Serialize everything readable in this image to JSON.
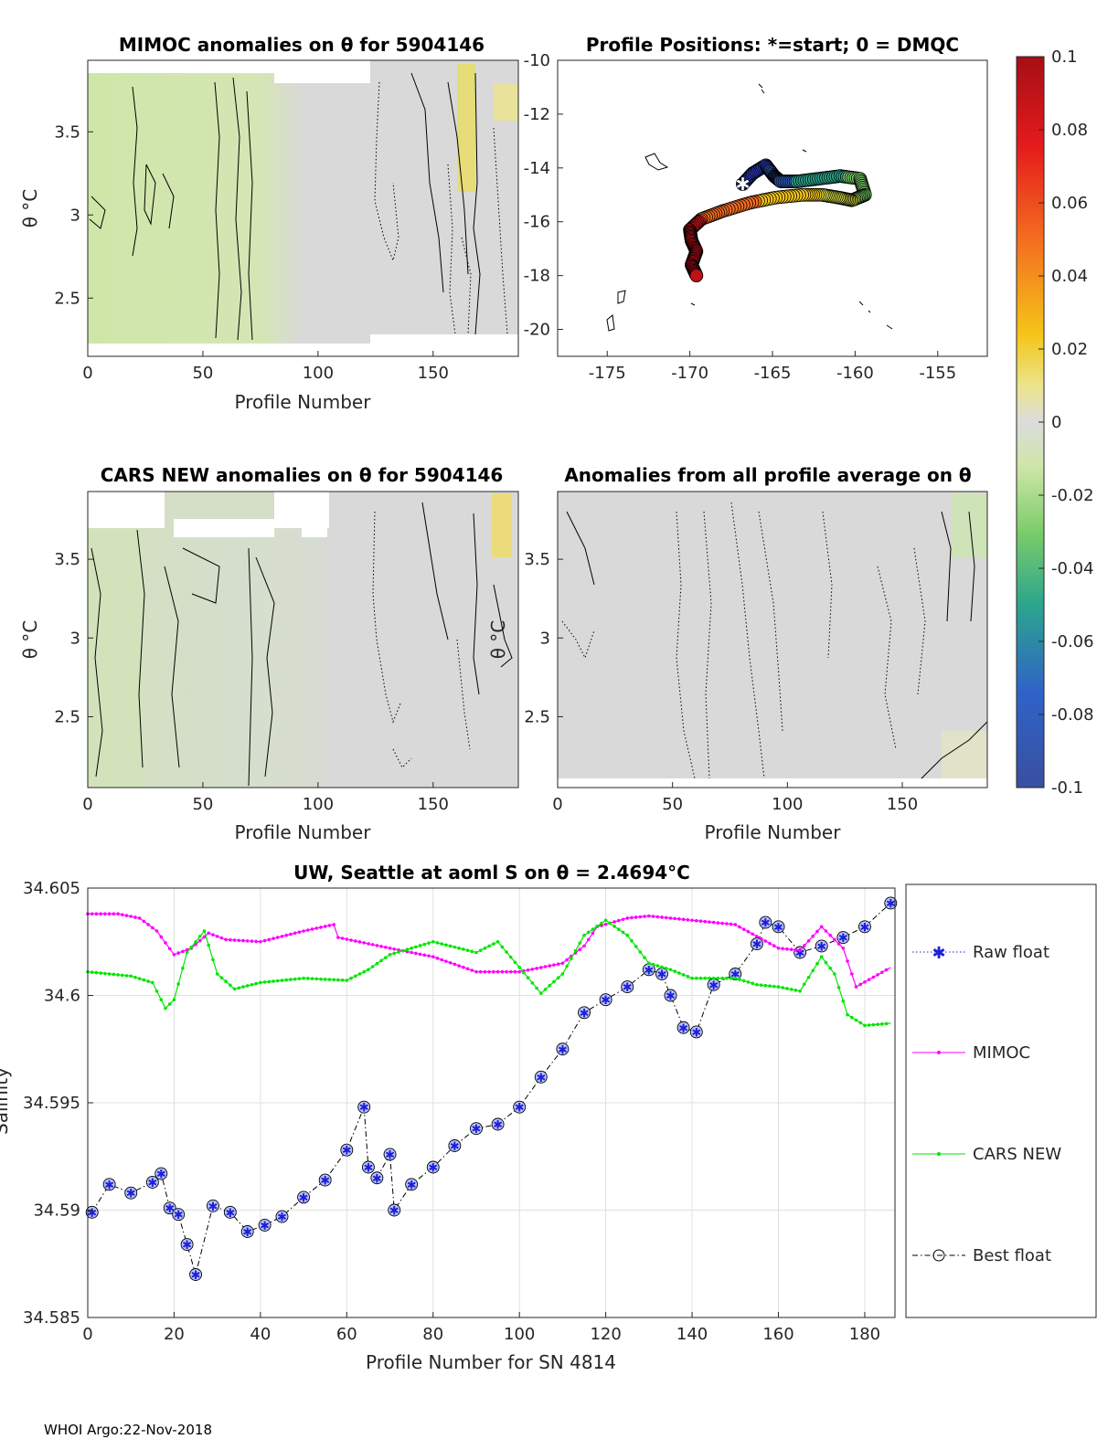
{
  "footer": "WHOI Argo:22-Nov-2018",
  "colors": {
    "raw": "#1f1fd6",
    "mimoc": "#ff00ff",
    "cars": "#00e600",
    "best": "#000000",
    "marker_fill": "#b9c7ff",
    "anom_bg": "#d9d9d9",
    "anom_neg": "#cfe6a8"
  },
  "colorbar": {
    "ticks": [
      "0.1",
      "0.08",
      "0.06",
      "0.04",
      "0.02",
      "0",
      "-0.02",
      "-0.04",
      "-0.06",
      "-0.08",
      "-0.1"
    ],
    "range": [
      -0.1,
      0.1
    ]
  },
  "chart_data": [
    {
      "id": "mimoc_anom",
      "type": "heatmap",
      "title": "MIMOC anomalies on θ  for 5904146",
      "xlabel": "Profile Number",
      "ylabel": "θ °C",
      "xlim": [
        0,
        187
      ],
      "ylim": [
        2.15,
        3.93
      ],
      "xticks": [
        "0",
        "50",
        "100",
        "150"
      ],
      "yticks": [
        "2.5",
        "3",
        "3.5"
      ]
    },
    {
      "id": "positions",
      "type": "scatter",
      "title": "Profile Positions: *=start; 0 = DMQC",
      "xlim": [
        -178,
        -152
      ],
      "ylim": [
        -21,
        -10
      ],
      "xticks": [
        "-175",
        "-170",
        "-165",
        "-160",
        "-155"
      ],
      "yticks": [
        "-10",
        "-12",
        "-14",
        "-16",
        "-18",
        "-20"
      ],
      "track_lon": [
        -166.8,
        -166.2,
        -165.4,
        -164.9,
        -164.5,
        -163.5,
        -162.2,
        -160.9,
        -159.7,
        -159.4,
        -160.2,
        -161.0,
        -162.0,
        -163.2,
        -164.8,
        -166.4,
        -168.0,
        -169.3,
        -170.0,
        -169.9,
        -169.6,
        -169.9,
        -169.6
      ],
      "track_lat": [
        -14.6,
        -14.2,
        -13.9,
        -14.3,
        -14.5,
        -14.5,
        -14.4,
        -14.3,
        -14.4,
        -15.0,
        -15.2,
        -15.1,
        -15.0,
        -15.0,
        -15.1,
        -15.3,
        -15.6,
        -15.9,
        -16.3,
        -16.7,
        -17.1,
        -17.6,
        -18.0
      ],
      "start": [
        -166.8,
        -14.6
      ]
    },
    {
      "id": "cars_anom",
      "type": "heatmap",
      "title": "CARS NEW anomalies on θ for 5904146",
      "xlabel": "Profile Number",
      "ylabel": "θ °C",
      "xlim": [
        0,
        187
      ],
      "ylim": [
        2.05,
        3.93
      ],
      "xticks": [
        "0",
        "50",
        "100",
        "150"
      ],
      "yticks": [
        "2.5",
        "3",
        "3.5"
      ]
    },
    {
      "id": "avg_anom",
      "type": "heatmap",
      "title": "Anomalies from all profile average on θ",
      "xlabel": "Profile Number",
      "ylabel": "θ °C",
      "xlim": [
        0,
        187
      ],
      "ylim": [
        2.05,
        3.93
      ],
      "xticks": [
        "0",
        "50",
        "100",
        "150"
      ],
      "yticks": [
        "2.5",
        "3",
        "3.5"
      ]
    },
    {
      "id": "salinity",
      "type": "line",
      "title": "UW, Seattle at aoml S on θ = 2.4694°C",
      "xlabel": "Profile Number for SN 4814",
      "ylabel": "Salinity",
      "xlim": [
        0,
        187
      ],
      "ylim": [
        34.585,
        34.605
      ],
      "xticks": [
        "0",
        "20",
        "40",
        "60",
        "80",
        "100",
        "120",
        "140",
        "160",
        "180"
      ],
      "yticks": [
        "34.585",
        "34.59",
        "34.595",
        "34.6",
        "34.605"
      ],
      "legend": [
        "Raw float",
        "MIMOC",
        "CARS NEW",
        "Best float"
      ],
      "series": [
        {
          "name": "Best float",
          "x": [
            1,
            5,
            10,
            15,
            17,
            19,
            21,
            23,
            25,
            29,
            33,
            37,
            41,
            45,
            50,
            55,
            60,
            64,
            65,
            67,
            70,
            71,
            75,
            80,
            85,
            90,
            95,
            100,
            105,
            110,
            115,
            120,
            125,
            130,
            133,
            135,
            138,
            141,
            145,
            150,
            155,
            157,
            160,
            165,
            170,
            175,
            180,
            186
          ],
          "y": [
            34.5899,
            34.5912,
            34.5908,
            34.5913,
            34.5917,
            34.5901,
            34.5898,
            34.5884,
            34.587,
            34.5902,
            34.5899,
            34.589,
            34.5893,
            34.5897,
            34.5906,
            34.5914,
            34.5928,
            34.5948,
            34.592,
            34.5915,
            34.5926,
            34.59,
            34.5912,
            34.592,
            34.593,
            34.5938,
            34.594,
            34.5948,
            34.5962,
            34.5975,
            34.5992,
            34.5998,
            34.6004,
            34.6012,
            34.601,
            34.6,
            34.5985,
            34.5983,
            34.6005,
            34.601,
            34.6024,
            34.6034,
            34.6032,
            34.602,
            34.6023,
            34.6027,
            34.6032,
            34.6043
          ]
        },
        {
          "name": "MIMOC",
          "x": [
            0,
            7,
            12,
            16,
            20,
            24,
            28,
            32,
            40,
            50,
            57,
            58,
            70,
            80,
            90,
            100,
            110,
            115,
            118,
            125,
            130,
            135,
            140,
            150,
            160,
            165,
            170,
            175,
            178,
            186
          ],
          "y": [
            34.6038,
            34.6038,
            34.6036,
            34.603,
            34.6019,
            34.6022,
            34.6029,
            34.6026,
            34.6025,
            34.603,
            34.6033,
            34.6027,
            34.6022,
            34.6018,
            34.6011,
            34.6011,
            34.6015,
            34.6023,
            34.6032,
            34.6036,
            34.6037,
            34.6036,
            34.6035,
            34.6033,
            34.6022,
            34.6021,
            34.6032,
            34.6022,
            34.6004,
            34.6013
          ]
        },
        {
          "name": "CARS NEW",
          "x": [
            0,
            10,
            15,
            18,
            20,
            23,
            27,
            30,
            34,
            40,
            50,
            60,
            65,
            70,
            80,
            90,
            95,
            100,
            105,
            110,
            115,
            120,
            125,
            130,
            135,
            140,
            150,
            155,
            160,
            165,
            170,
            173,
            176,
            180,
            186
          ],
          "y": [
            34.6011,
            34.6009,
            34.6006,
            34.5994,
            34.5998,
            34.602,
            34.603,
            34.601,
            34.6003,
            34.6006,
            34.6008,
            34.6007,
            34.6012,
            34.6019,
            34.6025,
            34.602,
            34.6025,
            34.6013,
            34.6001,
            34.601,
            34.6028,
            34.6035,
            34.6028,
            34.6015,
            34.6012,
            34.6008,
            34.6008,
            34.6005,
            34.6004,
            34.6002,
            34.6018,
            34.601,
            34.5991,
            34.5986,
            34.5987
          ]
        }
      ]
    }
  ]
}
